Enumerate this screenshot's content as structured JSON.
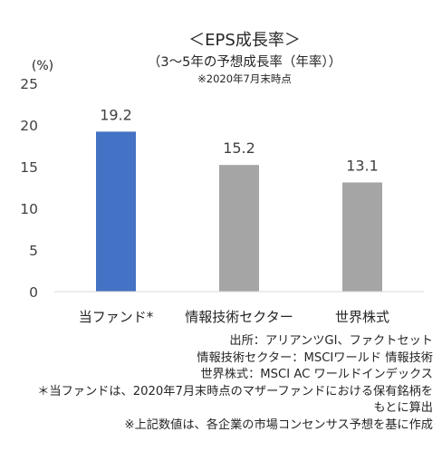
{
  "chart_data": {
    "type": "bar",
    "title": "＜EPS成長率＞",
    "subtitle": "（3～5年の予想成長率（年率））",
    "subtitle_note": "※2020年7月末時点",
    "ylabel": "(%)",
    "xlabel": "",
    "ylim": [
      0,
      25
    ],
    "yticks": [
      0,
      5,
      10,
      15,
      20,
      25
    ],
    "grid": false,
    "categories": [
      "当ファンド*",
      "情報技術セクター",
      "世界株式"
    ],
    "values": [
      19.2,
      15.2,
      13.1
    ],
    "data_labels": [
      "19.2",
      "15.2",
      "13.1"
    ],
    "colors": [
      "#4472c4",
      "#a5a5a5",
      "#a5a5a5"
    ]
  },
  "notes": [
    "出所：アリアンツGI、ファクトセット",
    "情報技術セクター：MSCIワールド 情報技術",
    "世界株式：MSCI AC ワールドインデックス",
    "＊当ファンドは、2020年7月末時点のマザーファンドにおける保有銘柄を",
    "もとに算出",
    "※上記数値は、各企業の市場コンセンサス予想を基に作成"
  ]
}
